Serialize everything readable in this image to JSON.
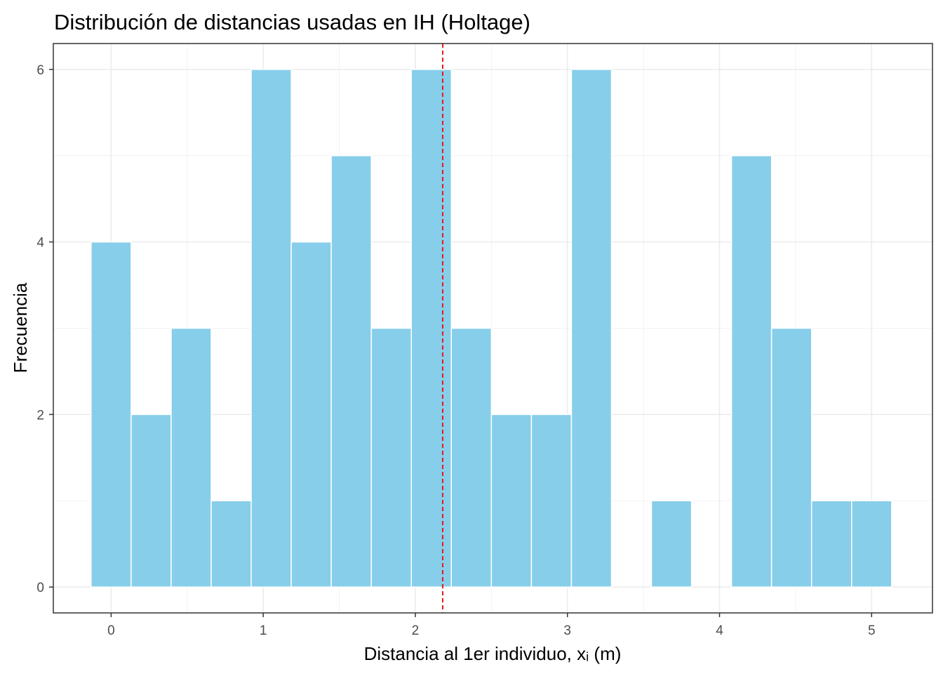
{
  "chart_data": {
    "type": "bar",
    "title": "Distribución de distancias usadas en IH (Holtage)",
    "xlabel": "Distancia al 1er individuo, xᵢ (m)",
    "ylabel": "Frecuencia",
    "bin_width": 0.2632,
    "bins": [
      {
        "x": 0.0,
        "count": 4
      },
      {
        "x": 0.2632,
        "count": 2
      },
      {
        "x": 0.5263,
        "count": 3
      },
      {
        "x": 0.7895,
        "count": 1
      },
      {
        "x": 1.0526,
        "count": 6
      },
      {
        "x": 1.3158,
        "count": 4
      },
      {
        "x": 1.5789,
        "count": 5
      },
      {
        "x": 1.8421,
        "count": 3
      },
      {
        "x": 2.1053,
        "count": 6
      },
      {
        "x": 2.3684,
        "count": 3
      },
      {
        "x": 2.6316,
        "count": 2
      },
      {
        "x": 2.8947,
        "count": 2
      },
      {
        "x": 3.1579,
        "count": 6
      },
      {
        "x": 3.4211,
        "count": 0
      },
      {
        "x": 3.6842,
        "count": 1
      },
      {
        "x": 3.9474,
        "count": 0
      },
      {
        "x": 4.2105,
        "count": 5
      },
      {
        "x": 4.4737,
        "count": 3
      },
      {
        "x": 4.7368,
        "count": 1
      },
      {
        "x": 5.0,
        "count": 1
      }
    ],
    "mean_line": {
      "x": 2.18,
      "color": "#e8191c",
      "style": "dashed"
    },
    "xlim": [
      -0.38,
      5.4
    ],
    "ylim": [
      -0.3,
      6.3
    ],
    "x_ticks": [
      "0",
      "1",
      "2",
      "3",
      "4",
      "5"
    ],
    "y_ticks": [
      "0",
      "2",
      "4",
      "6"
    ],
    "bar_color": "#87ceea",
    "bar_border": "#ffffff",
    "grid": true
  }
}
